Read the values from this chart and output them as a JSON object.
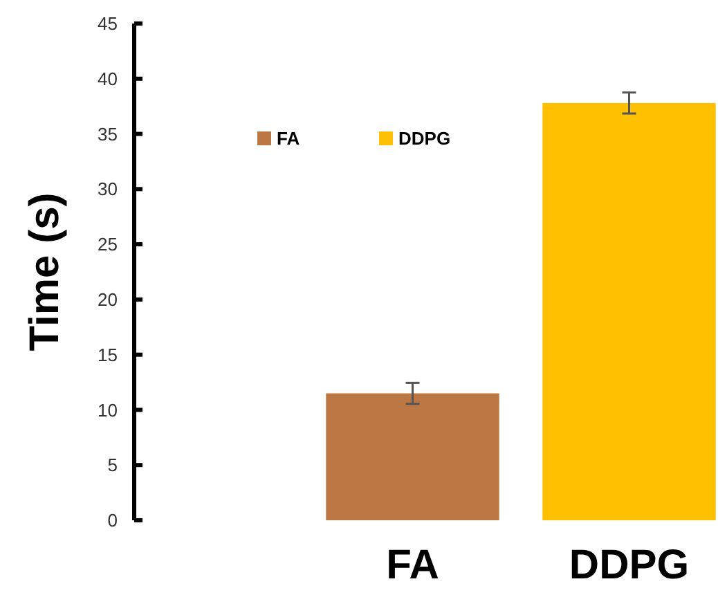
{
  "chart_data": {
    "type": "bar",
    "ylabel": "Time (s)",
    "categories": [
      "FA",
      "DDPG"
    ],
    "series": [
      {
        "name": "FA",
        "color": "#bb7844",
        "values": [
          11.5,
          null
        ],
        "errors": [
          0.95,
          null
        ]
      },
      {
        "name": "DDPG",
        "color": "#fec000",
        "values": [
          null,
          37.8
        ],
        "errors": [
          null,
          0.95
        ]
      }
    ],
    "ylim": [
      0,
      45
    ],
    "yticks": [
      0,
      5,
      10,
      15,
      20,
      25,
      30,
      35,
      40,
      45
    ],
    "legend": "top left"
  }
}
